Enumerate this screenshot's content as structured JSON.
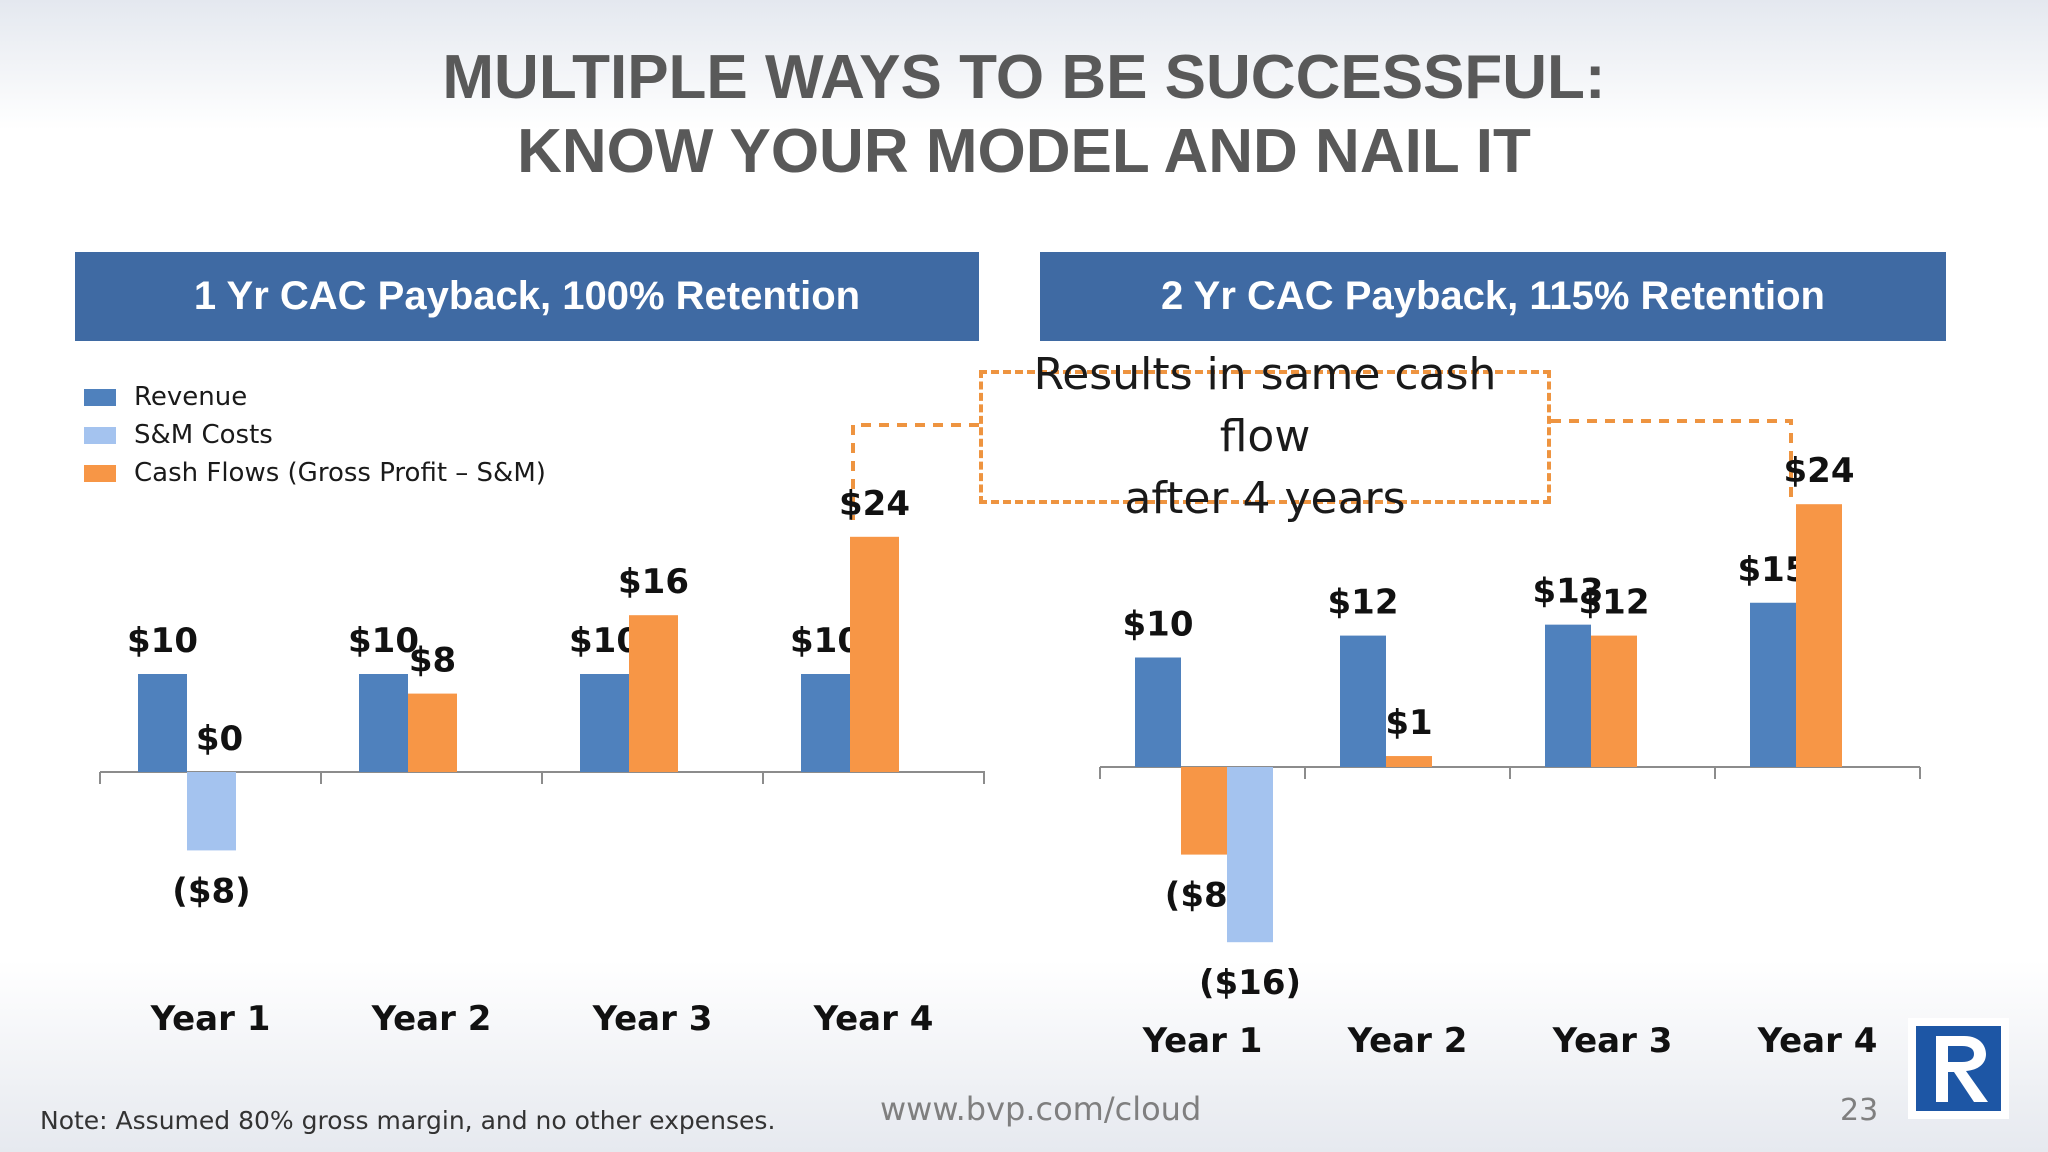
{
  "slide": {
    "title_line1": "MULTIPLE WAYS TO BE SUCCESSFUL:",
    "title_line2": "KNOW YOUR MODEL AND NAIL IT",
    "panel_left_title": "1 Yr CAC Payback, 100% Retention",
    "panel_right_title": "2 Yr CAC Payback, 115% Retention",
    "callout_line1": "Results in same cash flow",
    "callout_line2": "after 4 years",
    "footnote": "Note: Assumed  80% gross margin, and no other expenses.",
    "url": "www.bvp.com/cloud",
    "page_number": "23"
  },
  "legend": {
    "revenue": "Revenue",
    "sm_costs": "S&M Costs",
    "cash_flows": "Cash Flows (Gross Profit – S&M)"
  },
  "colors": {
    "revenue": "#4f81bd",
    "sm_costs": "#a4c3ef",
    "cash_flows": "#f79646",
    "header_bg": "#3f6aa3",
    "callout_border": "#ee9440",
    "logo": "#1d56a5"
  },
  "logo_icon": "bvp-r-logo-icon",
  "chart_data": [
    {
      "type": "bar",
      "title": "1 Yr CAC Payback, 100% Retention",
      "categories": [
        "Year 1",
        "Year 2",
        "Year 3",
        "Year 4"
      ],
      "series": [
        {
          "name": "Revenue",
          "values": [
            10,
            10,
            10,
            10
          ],
          "labels": [
            "$10",
            "$10",
            "$10",
            "$10"
          ]
        },
        {
          "name": "S&M Costs",
          "values": [
            -8,
            null,
            null,
            null
          ],
          "labels": [
            "($8)",
            null,
            null,
            null
          ]
        },
        {
          "name": "Cash Flows (Gross Profit – S&M)",
          "values": [
            0,
            8,
            16,
            24
          ],
          "labels": [
            "$0",
            "$8",
            "$16",
            "$24"
          ]
        }
      ],
      "legend": "top-left",
      "grid": false
    },
    {
      "type": "bar",
      "title": "2 Yr CAC Payback, 115% Retention",
      "categories": [
        "Year 1",
        "Year 2",
        "Year 3",
        "Year 4"
      ],
      "series": [
        {
          "name": "Revenue",
          "values": [
            10,
            12,
            13,
            15
          ],
          "labels": [
            "$10",
            "$12",
            "$13",
            "$15"
          ]
        },
        {
          "name": "Cash Flows (Gross Profit – S&M)",
          "values": [
            -8,
            1,
            12,
            24
          ],
          "labels": [
            "($8)",
            "$1",
            "$12",
            "$24"
          ]
        },
        {
          "name": "S&M Costs",
          "values": [
            -16,
            null,
            null,
            null
          ],
          "labels": [
            "($16)",
            null,
            null,
            null
          ]
        }
      ],
      "grid": false
    }
  ]
}
